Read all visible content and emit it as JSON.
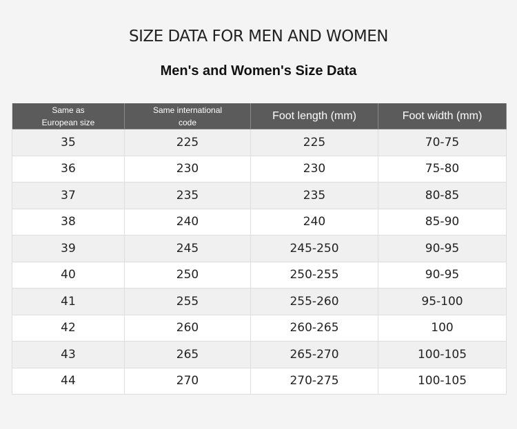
{
  "header": {
    "title": "SIZE DATA FOR MEN AND WOMEN",
    "subtitle": "Men's and Women's Size Data"
  },
  "table": {
    "columns": [
      "Same as European size",
      "Same international code",
      "Foot length (mm)",
      "Foot width (mm)"
    ],
    "rows": [
      [
        "35",
        "225",
        "225",
        "70-75"
      ],
      [
        "36",
        "230",
        "230",
        "75-80"
      ],
      [
        "37",
        "235",
        "235",
        "80-85"
      ],
      [
        "38",
        "240",
        "240",
        "85-90"
      ],
      [
        "39",
        "245",
        "245-250",
        "90-95"
      ],
      [
        "40",
        "250",
        "250-255",
        "90-95"
      ],
      [
        "41",
        "255",
        "255-260",
        "95-100"
      ],
      [
        "42",
        "260",
        "260-265",
        "100"
      ],
      [
        "43",
        "265",
        "265-270",
        "100-105"
      ],
      [
        "44",
        "270",
        "270-275",
        "100-105"
      ]
    ]
  }
}
